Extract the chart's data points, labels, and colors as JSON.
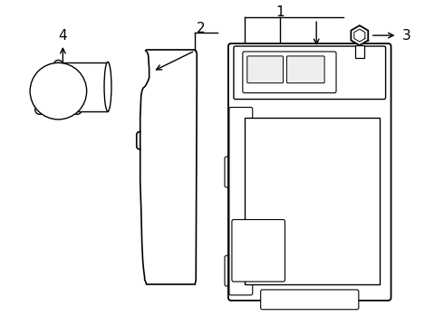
{
  "background_color": "#ffffff",
  "line_color": "#000000",
  "line_width": 1.0,
  "label_1": "1",
  "label_2": "2",
  "label_3": "3",
  "label_4": "4",
  "fig_width": 4.9,
  "fig_height": 3.6,
  "dpi": 100
}
